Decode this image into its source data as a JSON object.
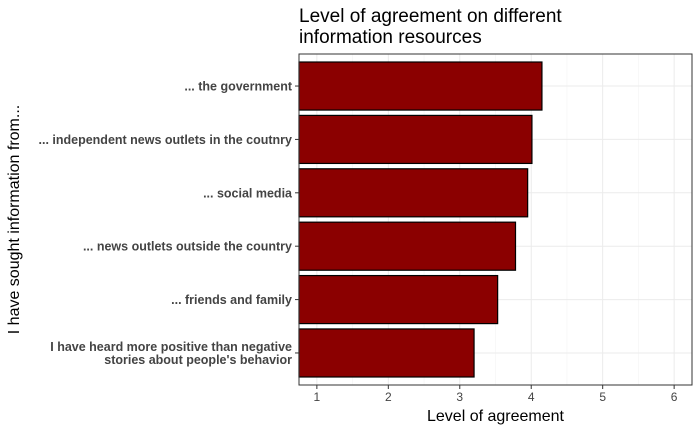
{
  "chart_data": {
    "type": "bar",
    "orientation": "horizontal",
    "title": "Level of agreement on different information resources",
    "title_lines": [
      "Level of agreement on different",
      "information resources"
    ],
    "xlabel": "Level of agreement",
    "ylabel": "I have sought information from...",
    "xlim": [
      0.75,
      6.25
    ],
    "xticks": [
      1,
      2,
      3,
      4,
      5,
      6
    ],
    "grid": true,
    "legend": "none",
    "bar_color": "#8B0000",
    "bar_edge_color": "#000000",
    "categories": [
      {
        "lines": [
          "... the government"
        ]
      },
      {
        "lines": [
          "... independent news outlets in the coutnry"
        ]
      },
      {
        "lines": [
          "... social media"
        ]
      },
      {
        "lines": [
          "... news outlets outside the country"
        ]
      },
      {
        "lines": [
          "... friends and family"
        ]
      },
      {
        "lines": [
          "I have heard more positive than negative",
          "stories about people's behavior"
        ]
      }
    ],
    "values": [
      4.15,
      4.01,
      3.95,
      3.78,
      3.53,
      3.2
    ]
  }
}
